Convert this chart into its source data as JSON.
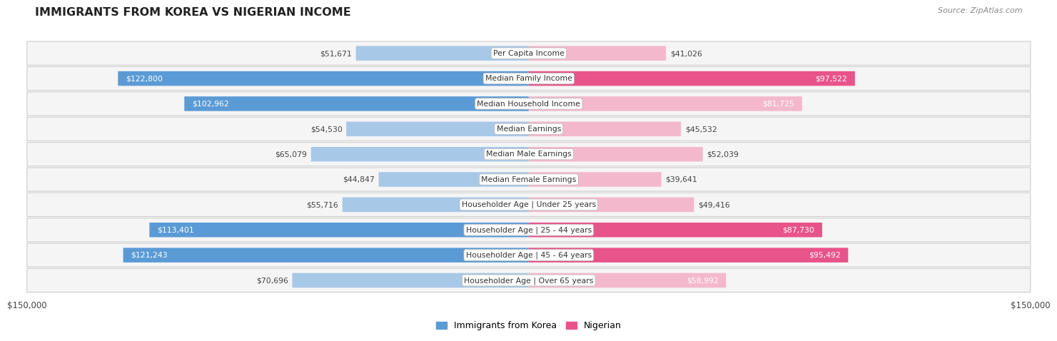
{
  "title": "IMMIGRANTS FROM KOREA VS NIGERIAN INCOME",
  "source": "Source: ZipAtlas.com",
  "categories": [
    "Per Capita Income",
    "Median Family Income",
    "Median Household Income",
    "Median Earnings",
    "Median Male Earnings",
    "Median Female Earnings",
    "Householder Age | Under 25 years",
    "Householder Age | 25 - 44 years",
    "Householder Age | 45 - 64 years",
    "Householder Age | Over 65 years"
  ],
  "korea_values": [
    51671,
    122800,
    102962,
    54530,
    65079,
    44847,
    55716,
    113401,
    121243,
    70696
  ],
  "nigeria_values": [
    41026,
    97522,
    81725,
    45532,
    52039,
    39641,
    49416,
    87730,
    95492,
    58992
  ],
  "korea_labels": [
    "$51,671",
    "$122,800",
    "$102,962",
    "$54,530",
    "$65,079",
    "$44,847",
    "$55,716",
    "$113,401",
    "$121,243",
    "$70,696"
  ],
  "nigeria_labels": [
    "$41,026",
    "$97,522",
    "$81,725",
    "$45,532",
    "$52,039",
    "$39,641",
    "$49,416",
    "$87,730",
    "$95,492",
    "$58,992"
  ],
  "korea_color_light": "#a8c8e8",
  "korea_color_dark": "#5b9bd5",
  "nigeria_color_light": "#f4b8cc",
  "nigeria_color_dark": "#e8538a",
  "korea_dark_threshold": 100000,
  "nigeria_dark_threshold": 85000,
  "max_value": 150000,
  "background_color": "#ffffff",
  "legend_korea": "Immigrants from Korea",
  "legend_nigeria": "Nigerian",
  "korea_inside_threshold": 75000,
  "nigeria_inside_threshold": 55000
}
